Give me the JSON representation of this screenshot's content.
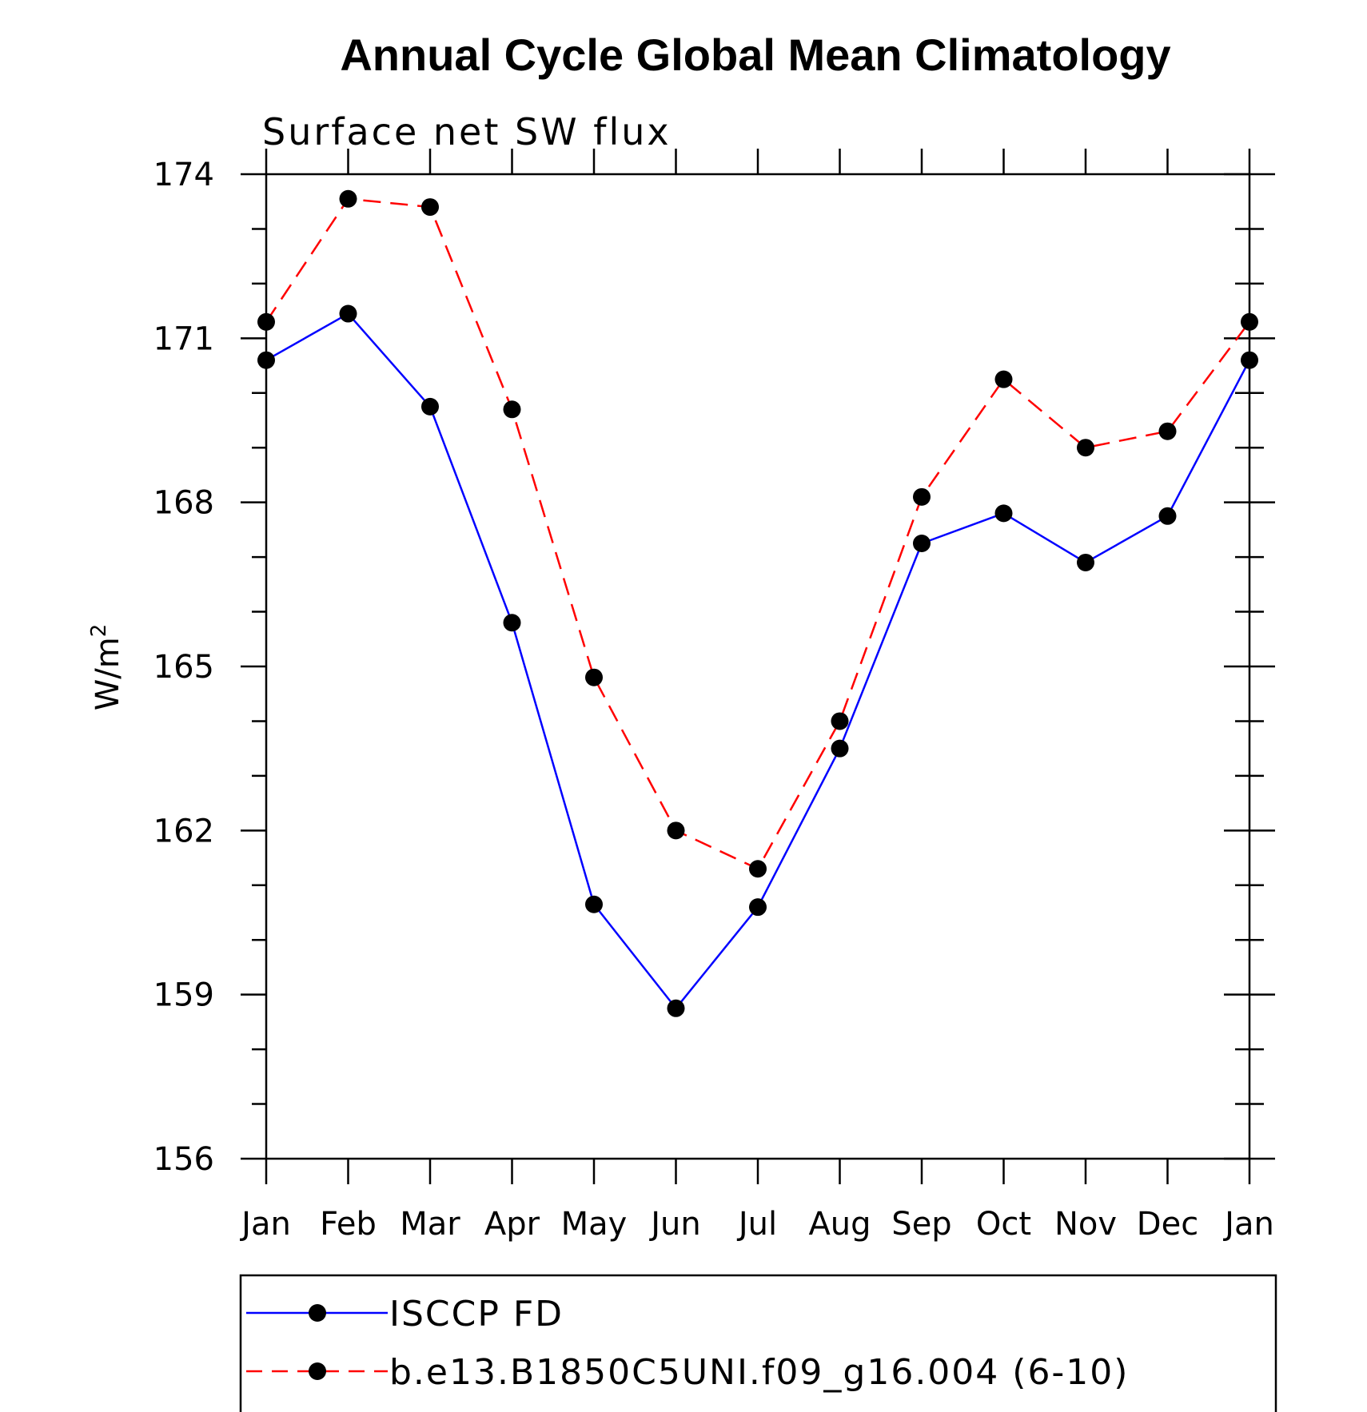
{
  "chart_data": {
    "type": "line",
    "title": "Annual Cycle Global Mean Climatology",
    "subtitle": "Surface net SW flux",
    "xlabel": "",
    "ylabel": "W/m",
    "ylabel_sup": "2",
    "categories": [
      "Jan",
      "Feb",
      "Mar",
      "Apr",
      "May",
      "Jun",
      "Jul",
      "Aug",
      "Sep",
      "Oct",
      "Nov",
      "Dec",
      "Jan"
    ],
    "ylim": [
      156,
      174
    ],
    "yticks": [
      156,
      159,
      162,
      165,
      168,
      171,
      174
    ],
    "grid": false,
    "legend_position": "bottom",
    "series": [
      {
        "name": "ISCCP FD",
        "color": "#0000ff",
        "line_style": "solid",
        "marker": "filled-circle",
        "values": [
          170.6,
          171.45,
          169.75,
          165.8,
          160.65,
          158.75,
          160.6,
          163.5,
          167.25,
          167.8,
          166.9,
          167.75,
          170.6
        ]
      },
      {
        "name": "b.e13.B1850C5UNI.f09_g16.004 (6-10)",
        "color": "#ff0000",
        "line_style": "dashed",
        "marker": "filled-circle",
        "values": [
          171.3,
          173.55,
          173.4,
          169.7,
          164.8,
          162.0,
          161.3,
          164.0,
          168.1,
          170.25,
          169.0,
          169.3,
          171.3
        ]
      }
    ]
  }
}
